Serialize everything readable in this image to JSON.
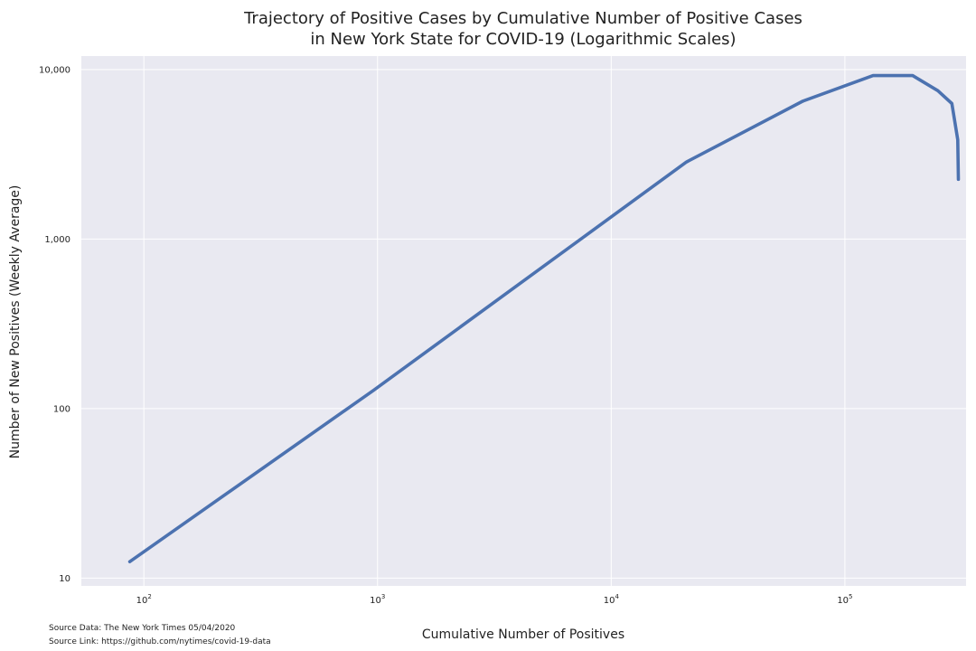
{
  "chart_data": {
    "type": "line",
    "title_lines": [
      "Trajectory of Positive Cases by Cumulative Number of Positive Cases",
      "in New York State for COVID-19 (Logarithmic Scales)"
    ],
    "xlabel": "Cumulative Number of Positives",
    "ylabel": "Number of New Positives (Weekly Average)",
    "xscale": "log",
    "yscale": "log",
    "xlim": [
      54,
      330000
    ],
    "ylim": [
      9,
      12000
    ],
    "grid": true,
    "x_ticks": [
      {
        "base": "10",
        "exp": "2",
        "value": 100
      },
      {
        "base": "10",
        "exp": "3",
        "value": 1000
      },
      {
        "base": "10",
        "exp": "4",
        "value": 10000
      },
      {
        "base": "10",
        "exp": "5",
        "value": 100000
      }
    ],
    "y_ticks": [
      {
        "label": "10,000",
        "value": 10000
      },
      {
        "label": "1,000",
        "value": 1000
      },
      {
        "label": "100",
        "value": 100
      },
      {
        "label": "10",
        "value": 10
      }
    ],
    "series": [
      {
        "color": "#4c72b0",
        "x": [
          87,
          960,
          21000,
          66000,
          132000,
          195000,
          250000,
          287000,
          304000,
          306000
        ],
        "y": [
          12.5,
          128,
          2850,
          6500,
          9200,
          9200,
          7500,
          6300,
          3850,
          2250
        ]
      }
    ]
  },
  "source": {
    "data_text": "Source Data: The New York Times 05/04/2020",
    "link_text": "Source Link: https://github.com/nytimes/covid-19-data"
  }
}
